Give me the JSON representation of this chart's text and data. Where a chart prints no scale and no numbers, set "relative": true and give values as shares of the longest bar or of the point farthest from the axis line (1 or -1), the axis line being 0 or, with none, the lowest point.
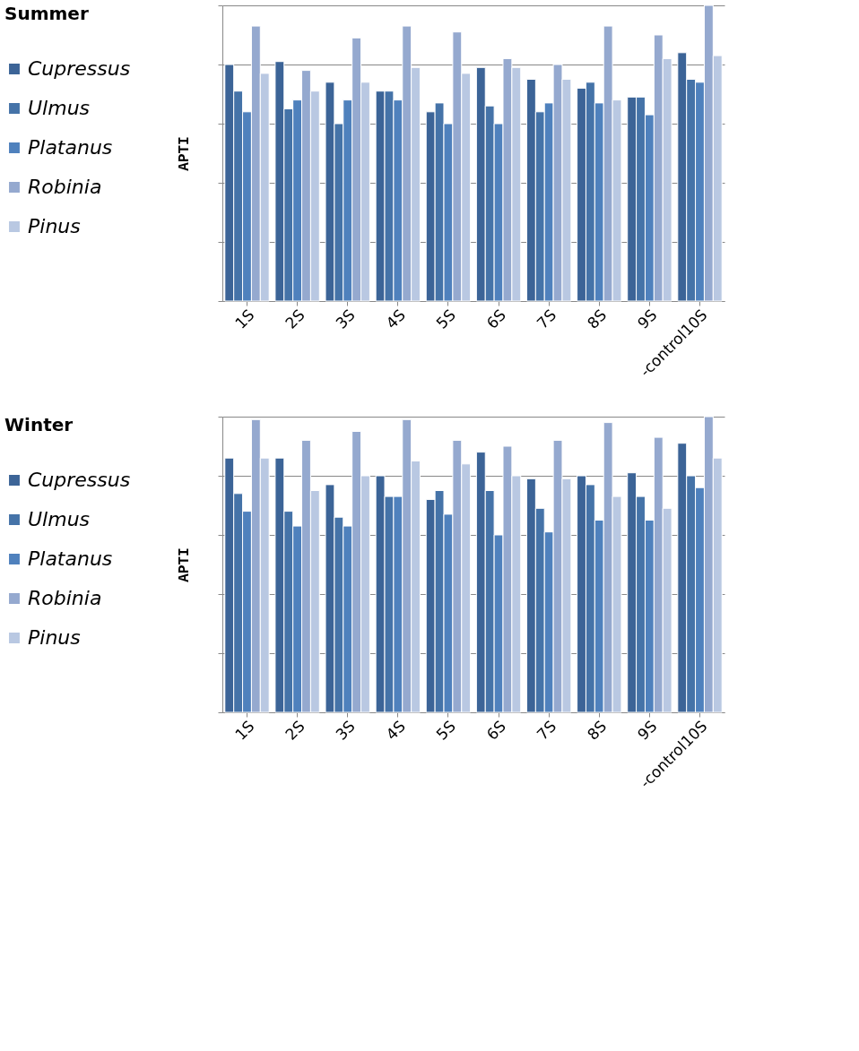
{
  "chart_data": [
    {
      "type": "bar",
      "relative": true,
      "legend_title": "Summer",
      "ylabel": "APTI",
      "legend": "left",
      "grid": "y",
      "categories": [
        "1S",
        "2S",
        "3S",
        "4S",
        "5S",
        "6S",
        "7S",
        "8S",
        "9S",
        "-control10S"
      ],
      "series": [
        {
          "name": "Cupressus",
          "color": "#3c6497",
          "values": [
            0.8,
            0.81,
            0.74,
            0.71,
            0.64,
            0.79,
            0.75,
            0.72,
            0.69,
            0.84
          ]
        },
        {
          "name": "Ulmus",
          "color": "#4573a8",
          "values": [
            0.71,
            0.65,
            0.6,
            0.71,
            0.67,
            0.66,
            0.64,
            0.74,
            0.69,
            0.75
          ]
        },
        {
          "name": "Platanus",
          "color": "#4f81bd",
          "values": [
            0.64,
            0.68,
            0.68,
            0.68,
            0.6,
            0.6,
            0.67,
            0.67,
            0.63,
            0.74
          ]
        },
        {
          "name": "Robinia",
          "color": "#95a9cf",
          "values": [
            0.93,
            0.78,
            0.89,
            0.93,
            0.91,
            0.82,
            0.8,
            0.93,
            0.9,
            1
          ]
        },
        {
          "name": "Pinus",
          "color": "#b9c8e2",
          "values": [
            0.77,
            0.71,
            0.74,
            0.79,
            0.77,
            0.79,
            0.75,
            0.68,
            0.82,
            0.83
          ]
        }
      ]
    },
    {
      "type": "bar",
      "relative": true,
      "legend_title": "Winter",
      "ylabel": "APTI",
      "legend": "left",
      "grid": "y",
      "categories": [
        "1S",
        "2S",
        "3S",
        "4S",
        "5S",
        "6S",
        "7S",
        "8S",
        "9S",
        "-control10S"
      ],
      "series": [
        {
          "name": "Cupressus",
          "color": "#3c6497",
          "values": [
            0.86,
            0.86,
            0.77,
            0.8,
            0.72,
            0.88,
            0.79,
            0.8,
            0.81,
            0.91
          ]
        },
        {
          "name": "Ulmus",
          "color": "#4573a8",
          "values": [
            0.74,
            0.68,
            0.66,
            0.73,
            0.75,
            0.75,
            0.69,
            0.77,
            0.73,
            0.8
          ]
        },
        {
          "name": "Platanus",
          "color": "#4f81bd",
          "values": [
            0.68,
            0.63,
            0.63,
            0.73,
            0.67,
            0.6,
            0.61,
            0.65,
            0.65,
            0.76
          ]
        },
        {
          "name": "Robinia",
          "color": "#95a9cf",
          "values": [
            0.99,
            0.92,
            0.95,
            0.99,
            0.92,
            0.9,
            0.92,
            0.98,
            0.93,
            1
          ]
        },
        {
          "name": "Pinus",
          "color": "#b9c8e2",
          "values": [
            0.86,
            0.75,
            0.8,
            0.85,
            0.84,
            0.8,
            0.79,
            0.73,
            0.69,
            0.86
          ]
        }
      ]
    }
  ]
}
